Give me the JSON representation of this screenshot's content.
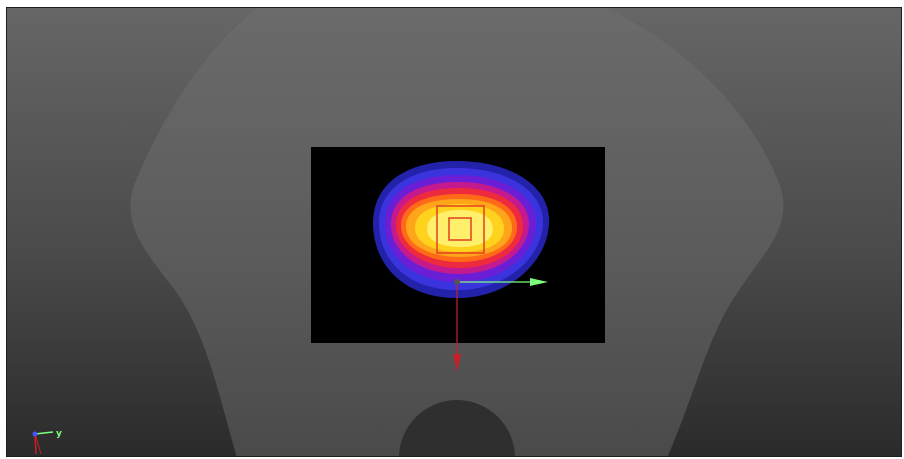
{
  "viewport": {
    "background_top": "#666666",
    "background_bottom": "#2b2b2b"
  },
  "phantom": {
    "color": "#727272",
    "hole_color": "#2f2f2f"
  },
  "dose_map": {
    "background": "#000000",
    "contour_colors": [
      "#2222aa",
      "#3b33dd",
      "#6a1fd6",
      "#c51a8d",
      "#ee2a3e",
      "#ff6a18",
      "#ffa51a",
      "#ffd21e",
      "#ffef6a"
    ],
    "target_outline_color": "#e04020"
  },
  "gizmo": {
    "x_axis_color": "#c8202a",
    "y_axis_color": "#7cff7c"
  },
  "orientation_triad": {
    "y_label": "y"
  }
}
